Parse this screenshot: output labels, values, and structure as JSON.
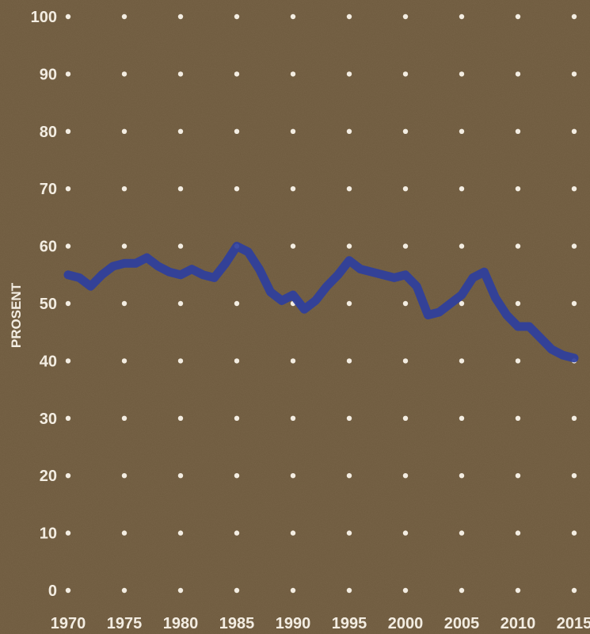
{
  "chart_data": {
    "type": "line",
    "title": "",
    "xlabel": "",
    "ylabel": "PROSENT",
    "xlim": [
      1970,
      2015
    ],
    "ylim": [
      0,
      100
    ],
    "x_ticks": [
      "1970",
      "1975",
      "1980",
      "1985",
      "1990",
      "1995",
      "2000",
      "2005",
      "2010",
      "2015"
    ],
    "y_ticks": [
      "0",
      "10",
      "20",
      "30",
      "40",
      "50",
      "60",
      "70",
      "80",
      "90",
      "100"
    ],
    "grid": "dotted",
    "series": [
      {
        "name": "",
        "color": "#2e3f9e",
        "x": [
          1970,
          1971,
          1972,
          1973,
          1974,
          1975,
          1976,
          1977,
          1978,
          1979,
          1980,
          1981,
          1982,
          1983,
          1984,
          1985,
          1986,
          1987,
          1988,
          1989,
          1990,
          1991,
          1992,
          1993,
          1994,
          1995,
          1996,
          1997,
          1998,
          1999,
          2000,
          2001,
          2002,
          2003,
          2004,
          2005,
          2006,
          2007,
          2008,
          2009,
          2010,
          2011,
          2012,
          2013,
          2014,
          2015
        ],
        "values": [
          55,
          54.5,
          53,
          55,
          56.5,
          57,
          57,
          58,
          56.5,
          55.5,
          55,
          56,
          55,
          54.5,
          57,
          60,
          59,
          56,
          52,
          50.5,
          51.5,
          49,
          50.5,
          53,
          55,
          57.5,
          56,
          55.5,
          55,
          54.5,
          55,
          53,
          48,
          48.5,
          50,
          51.5,
          54.5,
          55.5,
          51,
          48,
          46,
          46,
          44,
          42,
          41,
          40.5
        ]
      }
    ]
  },
  "colors": {
    "background": "#6e5a3e",
    "grid_dot": "#f3ede2",
    "label": "#f3ede2",
    "line": "#2e3f9e"
  }
}
